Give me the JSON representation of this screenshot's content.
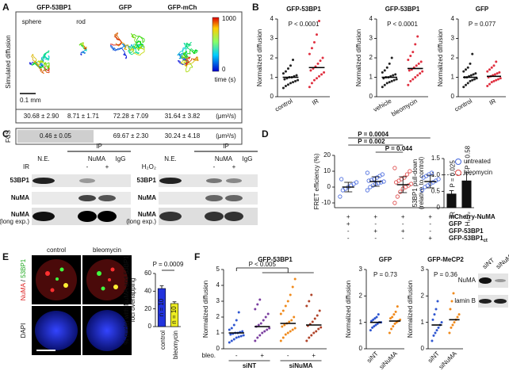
{
  "panels": {
    "A": {
      "label": "A",
      "constructs": [
        "GFP-53BP1",
        "GFP",
        "GFP-mCh"
      ],
      "shapes": [
        "sphere",
        "rod"
      ],
      "row_label": "Simulated diffusion",
      "scale_bar": "0.1 mm",
      "colorbar": {
        "max": "1000",
        "min": "0",
        "label": "time (s)"
      },
      "simulated": [
        "30.68 ± 2.90",
        "8.71 ± 1.71",
        "72.28 ± 7.09",
        "31.64 ± 3.82"
      ],
      "fcs_label": "FCS",
      "fcs": [
        "0.46 ± 0.05",
        "69.67 ± 2.30",
        "30.24 ± 4.18"
      ],
      "unit": "(μm²/s)"
    },
    "B": {
      "label": "B"
    },
    "C": {
      "label": "C",
      "ip": "IP",
      "ne": "N.E.",
      "numa": "NuMA",
      "igg": "IgG",
      "treatments": [
        "IR",
        "H₂O₂"
      ],
      "minus": "-",
      "plus": "+",
      "rows": [
        "53BP1",
        "NuMA",
        "NuMA"
      ],
      "long_exp": "(long exp.)"
    },
    "D": {
      "label": "D"
    },
    "E": {
      "label": "E",
      "columns": [
        "control",
        "bleomycin"
      ],
      "stain": [
        "NuMA",
        " / ",
        "53BP1"
      ],
      "dapi": "DAPI"
    },
    "F": {
      "label": "F",
      "lanes": [
        "siNT",
        "siNuMA"
      ],
      "rows": [
        "NuMA",
        "lamin B"
      ]
    }
  },
  "chart_data": [
    {
      "type": "strip",
      "title": "GFP-53BP1",
      "annotation": "P < 0.0001",
      "ylabel": "Normalized diffusion",
      "categories": [
        "control",
        "IR"
      ],
      "colors": [
        "#222222",
        "#e03040"
      ],
      "values": [
        [
          0.45,
          0.55,
          0.62,
          0.7,
          0.75,
          0.8,
          0.85,
          0.9,
          0.95,
          1.0,
          1.0,
          1.05,
          1.1,
          1.2,
          1.3,
          1.45,
          1.6,
          1.9
        ],
        [
          0.5,
          0.7,
          0.85,
          0.95,
          1.05,
          1.15,
          1.25,
          1.35,
          1.45,
          1.55,
          1.7,
          1.85,
          2.0,
          2.2,
          2.5,
          2.8,
          3.2,
          3.9
        ]
      ],
      "means": [
        1.0,
        1.5
      ],
      "ylim": [
        0,
        4
      ],
      "yticks": [
        0,
        1,
        2,
        3,
        4
      ]
    },
    {
      "type": "strip",
      "title": "GFP-53BP1",
      "annotation": "P < 0.0001",
      "ylabel": "Normalized diffusion",
      "categories": [
        "vehicle",
        "bleomycin"
      ],
      "colors": [
        "#222222",
        "#e03040"
      ],
      "values": [
        [
          0.5,
          0.6,
          0.7,
          0.75,
          0.8,
          0.85,
          0.9,
          0.95,
          1.0,
          1.0,
          1.05,
          1.1,
          1.15,
          1.25,
          1.35,
          1.5,
          1.7,
          2.0
        ],
        [
          0.6,
          0.8,
          0.9,
          1.0,
          1.1,
          1.2,
          1.3,
          1.35,
          1.4,
          1.5,
          1.6,
          1.7,
          1.8,
          1.9,
          2.1,
          2.3,
          2.7,
          3.1
        ]
      ],
      "means": [
        1.0,
        1.45
      ],
      "ylim": [
        0,
        4
      ],
      "yticks": [
        0,
        1,
        2,
        3,
        4
      ]
    },
    {
      "type": "strip",
      "title": "GFP",
      "annotation": "P = 0.077",
      "ylabel": "Normalized diffusion",
      "categories": [
        "control",
        "IR"
      ],
      "colors": [
        "#222222",
        "#e03040"
      ],
      "values": [
        [
          0.5,
          0.6,
          0.7,
          0.8,
          0.85,
          0.9,
          0.95,
          1.0,
          1.0,
          1.05,
          1.1,
          1.15,
          1.2,
          1.3,
          1.4,
          1.5,
          1.7,
          2.2
        ],
        [
          0.55,
          0.65,
          0.75,
          0.8,
          0.85,
          0.9,
          0.95,
          1.0,
          1.05,
          1.1,
          1.15,
          1.2,
          1.25,
          1.3,
          1.4,
          1.5,
          1.6,
          1.8
        ]
      ],
      "means": [
        1.0,
        1.05
      ],
      "ylim": [
        0,
        4
      ],
      "yticks": [
        0,
        1,
        2,
        3,
        4
      ]
    },
    {
      "type": "bar",
      "ylabel": [
        "53BP1 pull-down",
        "(relative to control)"
      ],
      "categories": [
        "IR",
        "H₂O₂"
      ],
      "colors": [
        "#111111",
        "#111111"
      ],
      "values": [
        0.42,
        0.82
      ],
      "errors": [
        0.1,
        0.25
      ],
      "annotations": [
        "P = 0.025",
        "P = 0.58"
      ],
      "refline": 1,
      "ylim": [
        0,
        1.5
      ],
      "yticks": [
        0,
        0.5,
        {
          "value": 1,
          "label": "1.0"
        },
        1.5
      ]
    },
    {
      "type": "dots",
      "ylabel": "FRET efficiency (%)",
      "categories": [
        null,
        null,
        null,
        null
      ],
      "series": [
        {
          "name": "untreated",
          "color": "#4466dd",
          "values": [
            [
              -6,
              -2,
              -1,
              0,
              1,
              2,
              3,
              5
            ],
            [
              -2,
              0,
              1,
              2,
              2.5,
              3,
              3.5,
              4,
              4.5,
              5,
              6,
              7,
              8,
              9
            ],
            null,
            [
              -2,
              0,
              1,
              2,
              3,
              4,
              5,
              6,
              7,
              8,
              9
            ]
          ],
          "means": [
            0,
            3.5,
            null,
            3.5
          ],
          "errors": [
            3,
            3,
            null,
            4
          ]
        },
        {
          "name": "bleomycin",
          "color": "#dd4444",
          "values": [
            null,
            null,
            [
              -10,
              -6,
              -3,
              -1,
              0,
              1,
              2,
              3,
              4,
              5,
              6,
              8,
              10,
              12
            ],
            null
          ],
          "means": [
            null,
            null,
            1.5,
            null
          ],
          "errors": [
            null,
            null,
            5,
            null
          ]
        }
      ],
      "annotations": [
        "P = 0.0004",
        "P = 0.002",
        "P = 0.044"
      ],
      "conditions": [
        {
          "name": "mCherry-NuMA",
          "signs": [
            "+",
            "+",
            "+",
            "+"
          ]
        },
        {
          "name": "GFP",
          "signs": [
            "+",
            "-",
            "-",
            "-"
          ]
        },
        {
          "name": "GFP-53BP1",
          "signs": [
            "-",
            "+",
            "+",
            "-"
          ]
        },
        {
          "name": "GFP-53BP1",
          "sub": "ct",
          "signs": [
            "-",
            "-",
            "-",
            "+"
          ]
        }
      ],
      "ylim": [
        -13,
        20
      ],
      "yticks": [
        -10,
        0,
        10,
        20
      ]
    },
    {
      "type": "bar",
      "ylabel": [
        "% nuclei with NuMA and 53BP1",
        "foci overlapping"
      ],
      "categories": [
        "control",
        "bleomycin"
      ],
      "colors": [
        "#2233dd",
        "#eeee22"
      ],
      "values": [
        43,
        26
      ],
      "errors": [
        3,
        2
      ],
      "n_labels": [
        "n = 10",
        "n = 10"
      ],
      "annotations": [
        "P = 0.0009"
      ],
      "ylim": [
        0,
        60
      ],
      "yticks": [
        0,
        20,
        40,
        60
      ]
    },
    {
      "type": "strip",
      "title": "GFP-53BP1",
      "annotation": "P < 0.005",
      "ylabel": "Normalized diffusion",
      "categories": [
        "-",
        "+",
        "-",
        "+"
      ],
      "bleo_label": "bleo.",
      "groups": [
        "siNT",
        "siNuMA"
      ],
      "colors": [
        "#2f56d0",
        "#7b3fa0",
        "#f08a1c",
        "#b0442a"
      ],
      "values": [
        [
          0.4,
          0.5,
          0.6,
          0.7,
          0.75,
          0.8,
          0.85,
          0.9,
          0.95,
          1.0,
          1.0,
          1.05,
          1.1,
          1.2,
          1.3,
          1.5,
          1.8,
          2.3
        ],
        [
          0.5,
          0.7,
          0.85,
          1.0,
          1.1,
          1.2,
          1.3,
          1.4,
          1.5,
          1.6,
          1.8,
          2.0,
          2.2,
          2.5,
          2.8,
          3.1
        ],
        [
          0.5,
          0.7,
          0.9,
          1.0,
          1.1,
          1.2,
          1.3,
          1.4,
          1.5,
          1.6,
          1.7,
          1.8,
          2.0,
          2.2,
          2.4,
          2.7,
          3.0,
          3.4,
          3.9,
          4.4
        ],
        [
          0.5,
          0.7,
          0.85,
          1.0,
          1.1,
          1.25,
          1.35,
          1.45,
          1.55,
          1.7,
          1.9,
          2.1,
          2.4,
          2.7,
          3.0,
          3.4
        ]
      ],
      "means": [
        1.0,
        1.4,
        1.6,
        1.5
      ],
      "ylim": [
        0,
        5
      ],
      "yticks": [
        0,
        1,
        2,
        3,
        4,
        5
      ]
    },
    {
      "type": "strip",
      "title": "GFP",
      "annotation": "P = 0.73",
      "ylabel": "Normalized diffusion",
      "categories": [
        "siNT",
        "siNuMA"
      ],
      "colors": [
        "#2f56d0",
        "#f08a1c"
      ],
      "values": [
        [
          0.7,
          0.8,
          0.85,
          0.9,
          0.95,
          1.0,
          1.0,
          1.05,
          1.1,
          1.15,
          1.2,
          1.3
        ],
        [
          0.6,
          0.75,
          0.85,
          0.95,
          1.0,
          1.05,
          1.1,
          1.15,
          1.2,
          1.3,
          1.4,
          1.6
        ]
      ],
      "means": [
        1.0,
        1.05
      ],
      "ylim": [
        0,
        3
      ],
      "yticks": [
        0,
        1,
        2,
        3
      ]
    },
    {
      "type": "strip",
      "title": "GFP-MeCP2",
      "annotation": "P = 0.36",
      "ylabel": "Normalized diffusion",
      "categories": [
        "siNT",
        "siNuMA"
      ],
      "colors": [
        "#2f56d0",
        "#f08a1c"
      ],
      "values": [
        [
          0.3,
          0.5,
          0.6,
          0.7,
          0.8,
          0.9,
          1.0,
          1.1,
          1.3,
          1.5,
          1.8
        ],
        [
          0.6,
          0.8,
          0.9,
          1.0,
          1.1,
          1.2,
          1.3,
          1.5,
          1.8,
          2.1
        ]
      ],
      "means": [
        0.9,
        1.1
      ],
      "ylim": [
        0,
        3
      ],
      "yticks": [
        0,
        1,
        2,
        3
      ]
    }
  ]
}
